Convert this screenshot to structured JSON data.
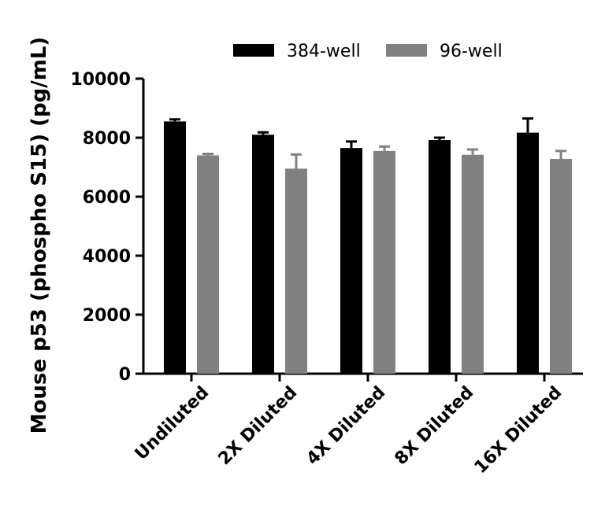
{
  "chart_data": {
    "type": "bar",
    "categories": [
      "Undiluted",
      "2X Diluted",
      "4X Diluted",
      "8X Diluted",
      "16X Diluted"
    ],
    "series": [
      {
        "name": "384-well",
        "color": "#000000",
        "values": [
          8550,
          8100,
          7650,
          7920,
          8170
        ],
        "errors": [
          70,
          80,
          220,
          80,
          480
        ]
      },
      {
        "name": "96-well",
        "color": "#808080",
        "values": [
          7400,
          6950,
          7550,
          7420,
          7280
        ],
        "errors": [
          50,
          480,
          150,
          180,
          270
        ]
      }
    ],
    "title": "",
    "xlabel": "",
    "ylabel": "Mouse p53 (phospho S15) (pg/mL)",
    "ylim": [
      0,
      10000
    ],
    "yticks": [
      "0",
      "2000",
      "4000",
      "6000",
      "8000",
      "10000"
    ],
    "legend": "top",
    "grid": false
  }
}
